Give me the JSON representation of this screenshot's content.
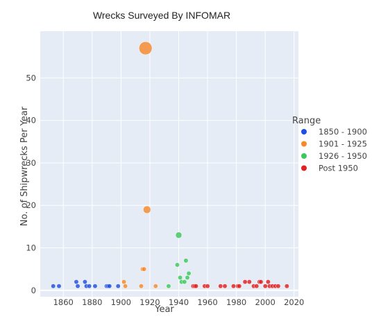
{
  "chart_data": {
    "type": "scatter",
    "title": "Wrecks Surveyed By INFOMAR",
    "xlabel": "Year",
    "ylabel": "No. of Shipwrecks Per Year",
    "xlim": [
      1844,
      2023
    ],
    "ylim": [
      -1.5,
      61
    ],
    "x_ticks": [
      1860,
      1880,
      1900,
      1920,
      1940,
      1960,
      1980,
      2000,
      2020
    ],
    "y_ticks": [
      0,
      10,
      20,
      30,
      40,
      50
    ],
    "grid": true,
    "plot_background": "#e5ecf6",
    "marker_size_encodes": "y",
    "legend": {
      "title": "Range",
      "placement": "right",
      "entries": [
        "1850 - 1900",
        "1901 - 1925",
        "1926 - 1950",
        "Post 1950"
      ]
    },
    "series": [
      {
        "name": "1850 - 1900",
        "color": "#1f4fe0",
        "x": [
          1853,
          1857,
          1869,
          1870,
          1875,
          1876,
          1878,
          1882,
          1890,
          1891,
          1892,
          1898
        ],
        "y": [
          1,
          1,
          2,
          1,
          2,
          1,
          1,
          1,
          1,
          1,
          1,
          1
        ]
      },
      {
        "name": "1901 - 1925",
        "color": "#f5892c",
        "x": [
          1902,
          1903,
          1914,
          1915,
          1916,
          1917,
          1918,
          1924
        ],
        "y": [
          2,
          1,
          1,
          5,
          5,
          57,
          19,
          1
        ]
      },
      {
        "name": "1926 - 1950",
        "color": "#3cc85a",
        "x": [
          1933,
          1939,
          1940,
          1941,
          1942,
          1944,
          1945,
          1946,
          1947
        ],
        "y": [
          1,
          6,
          13,
          3,
          2,
          2,
          7,
          3,
          4
        ]
      },
      {
        "name": "Post 1950",
        "color": "#de2121",
        "x": [
          1950,
          1951,
          1952,
          1958,
          1960,
          1969,
          1972,
          1978,
          1981,
          1982,
          1986,
          1989,
          1992,
          1994,
          1996,
          1997,
          2000,
          2002,
          2003,
          2005,
          2007,
          2009,
          2015
        ],
        "y": [
          1,
          1,
          1,
          1,
          1,
          1,
          1,
          1,
          1,
          1,
          2,
          2,
          1,
          1,
          2,
          2,
          1,
          2,
          1,
          1,
          1,
          1,
          1
        ]
      }
    ]
  }
}
